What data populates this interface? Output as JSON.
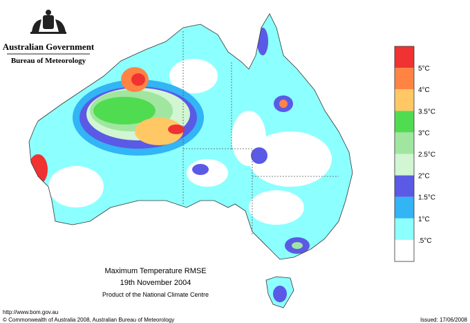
{
  "header": {
    "agency": "Australian Government",
    "bureau": "Bureau of Meteorology"
  },
  "legend": {
    "labels": [
      "5°C",
      "4°C",
      "3.5°C",
      "3°C",
      "2.5°C",
      "2°C",
      "1.5°C",
      "1°C",
      ".5°C"
    ],
    "colors": [
      "#f03232",
      "#ff8444",
      "#ffc864",
      "#50dc50",
      "#a0e6a0",
      "#d2f5d2",
      "#5a5ae6",
      "#32b4f5",
      "#8cffff",
      "#ffffff"
    ]
  },
  "caption": {
    "title": "Maximum Temperature RMSE",
    "date": "19th  November  2004",
    "product": "Product of the National Climate Centre"
  },
  "footer": {
    "url": "http://www.bom.gov.au",
    "copyright": "© Commonwealth of Australia 2008, Australian Bureau of Meteorology",
    "issued": "Issued: 17/06/2008"
  }
}
